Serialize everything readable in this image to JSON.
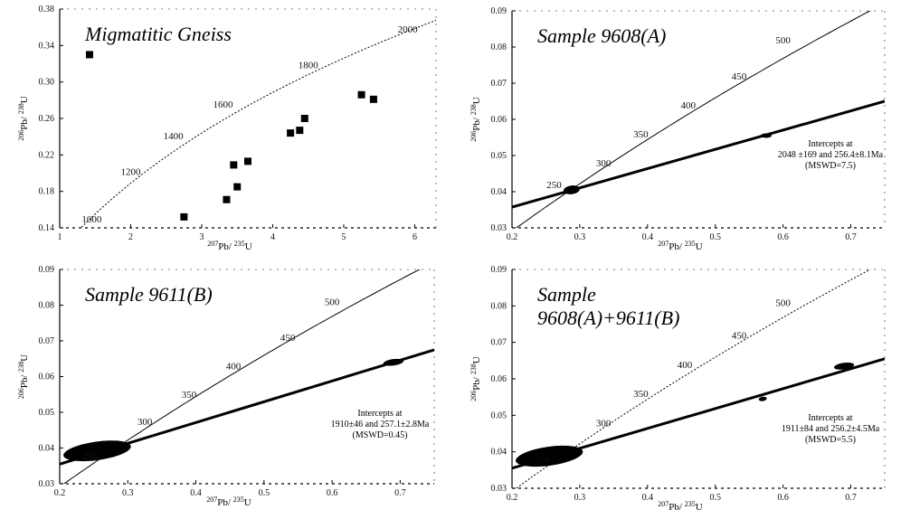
{
  "chart_data": [
    {
      "type": "scatter",
      "title": "Migmatitic Gneiss",
      "xlabel": "207Pb/ 235U",
      "ylabel": "206Pb/ 238U",
      "xlim": [
        1,
        6.3
      ],
      "ylim": [
        0.14,
        0.38
      ],
      "x_ticks": [
        "1",
        "2",
        "3",
        "4",
        "5",
        "6"
      ],
      "y_ticks": [
        "0.14",
        "0.18",
        "0.22",
        "0.26",
        "0.30",
        "0.34",
        "0.38"
      ],
      "concordia_labels": [
        {
          "text": "1000",
          "x": 1.45,
          "y": 0.146
        },
        {
          "text": "1200",
          "x": 2.0,
          "y": 0.198
        },
        {
          "text": "1400",
          "x": 2.6,
          "y": 0.237
        },
        {
          "text": "1600",
          "x": 3.3,
          "y": 0.272
        },
        {
          "text": "1800",
          "x": 4.5,
          "y": 0.315
        },
        {
          "text": "2000",
          "x": 5.9,
          "y": 0.354
        }
      ],
      "points": [
        {
          "x": 1.42,
          "y": 0.33
        },
        {
          "x": 2.75,
          "y": 0.152
        },
        {
          "x": 3.35,
          "y": 0.171
        },
        {
          "x": 3.5,
          "y": 0.185
        },
        {
          "x": 3.45,
          "y": 0.209
        },
        {
          "x": 3.65,
          "y": 0.213
        },
        {
          "x": 4.25,
          "y": 0.244
        },
        {
          "x": 4.38,
          "y": 0.247
        },
        {
          "x": 4.45,
          "y": 0.26
        },
        {
          "x": 5.25,
          "y": 0.286
        },
        {
          "x": 5.42,
          "y": 0.281
        }
      ],
      "annotations": []
    },
    {
      "type": "scatter",
      "title": "Sample 9608(A)",
      "xlabel": "207Pb/ 235U",
      "ylabel": "206Pb/ 238U",
      "xlim": [
        0.2,
        0.75
      ],
      "ylim": [
        0.03,
        0.09
      ],
      "x_ticks": [
        "0.2",
        "0.3",
        "0.4",
        "0.5",
        "0.6",
        "0.7"
      ],
      "y_ticks": [
        "0.03",
        "0.04",
        "0.05",
        "0.06",
        "0.07",
        "0.08",
        "0.09"
      ],
      "concordia_labels": [
        {
          "text": "250",
          "x": 0.262,
          "y": 0.041
        },
        {
          "text": "300",
          "x": 0.335,
          "y": 0.047
        },
        {
          "text": "350",
          "x": 0.39,
          "y": 0.055
        },
        {
          "text": "400",
          "x": 0.46,
          "y": 0.063
        },
        {
          "text": "450",
          "x": 0.535,
          "y": 0.071
        },
        {
          "text": "500",
          "x": 0.6,
          "y": 0.081
        }
      ],
      "discordia": {
        "lower": [
          0.28,
          0.04
        ],
        "upper": [
          0.75,
          0.065
        ]
      },
      "ellipses": [
        {
          "x": 0.288,
          "y": 0.0405,
          "rx": 0.012,
          "ry": 0.0012
        }
      ],
      "points": [
        {
          "x": 0.575,
          "y": 0.0555
        }
      ],
      "annotations": [
        "Intercepts at",
        "2048 ±169 and 256.4±8.1Ma",
        "(MSWD=7.5)"
      ]
    },
    {
      "type": "scatter",
      "title": "Sample 9611(B)",
      "xlabel": "207Pb/ 235U",
      "ylabel": "206Pb/ 238U",
      "xlim": [
        0.2,
        0.75
      ],
      "ylim": [
        0.03,
        0.09
      ],
      "x_ticks": [
        "0.2",
        "0.3",
        "0.4",
        "0.5",
        "0.6",
        "0.7"
      ],
      "y_ticks": [
        "0.03",
        "0.04",
        "0.05",
        "0.06",
        "0.07",
        "0.08",
        "0.09"
      ],
      "concordia_labels": [
        {
          "text": "250",
          "x": 0.245,
          "y": 0.0368
        },
        {
          "text": "300",
          "x": 0.325,
          "y": 0.0465
        },
        {
          "text": "350",
          "x": 0.39,
          "y": 0.054
        },
        {
          "text": "400",
          "x": 0.455,
          "y": 0.062
        },
        {
          "text": "450",
          "x": 0.535,
          "y": 0.07
        },
        {
          "text": "500",
          "x": 0.6,
          "y": 0.08
        }
      ],
      "discordia": {
        "lower": [
          0.2,
          0.0355
        ],
        "upper": [
          0.75,
          0.0675
        ]
      },
      "ellipses": [
        {
          "x": 0.255,
          "y": 0.0392,
          "rx": 0.05,
          "ry": 0.0026
        },
        {
          "x": 0.69,
          "y": 0.064,
          "rx": 0.015,
          "ry": 0.0009
        }
      ],
      "points": [],
      "annotations": [
        "Intercepts at",
        "1910±46 and 257.1±2.8Ma",
        "(MSWD=0.45)"
      ]
    },
    {
      "type": "scatter",
      "title": "Sample 9608(A)+9611(B)",
      "title_lines": [
        "Sample",
        "9608(A)+9611(B)"
      ],
      "xlabel": "207Pb/ 235U",
      "ylabel": "206Pb/ 238U",
      "xlim": [
        0.2,
        0.75
      ],
      "ylim": [
        0.03,
        0.09
      ],
      "x_ticks": [
        "0.2",
        "0.3",
        "0.4",
        "0.5",
        "0.6",
        "0.7"
      ],
      "y_ticks": [
        "0.03",
        "0.04",
        "0.05",
        "0.06",
        "0.07",
        "0.08",
        "0.09"
      ],
      "concordia_labels": [
        {
          "text": "250",
          "x": 0.245,
          "y": 0.0368
        },
        {
          "text": "300",
          "x": 0.335,
          "y": 0.047
        },
        {
          "text": "350",
          "x": 0.39,
          "y": 0.055
        },
        {
          "text": "400",
          "x": 0.455,
          "y": 0.063
        },
        {
          "text": "450",
          "x": 0.535,
          "y": 0.071
        },
        {
          "text": "500",
          "x": 0.6,
          "y": 0.08
        }
      ],
      "discordia": {
        "lower": [
          0.2,
          0.0355
        ],
        "upper": [
          0.75,
          0.0655
        ]
      },
      "ellipses": [
        {
          "x": 0.255,
          "y": 0.0388,
          "rx": 0.05,
          "ry": 0.0026
        },
        {
          "x": 0.69,
          "y": 0.0635,
          "rx": 0.015,
          "ry": 0.0009
        },
        {
          "x": 0.57,
          "y": 0.0545,
          "rx": 0.006,
          "ry": 0.0006
        }
      ],
      "points": [],
      "annotations": [
        "Intercepts at",
        "1911±84 and 256.2±4.5Ma",
        "(MSWD=5.5)"
      ]
    }
  ]
}
